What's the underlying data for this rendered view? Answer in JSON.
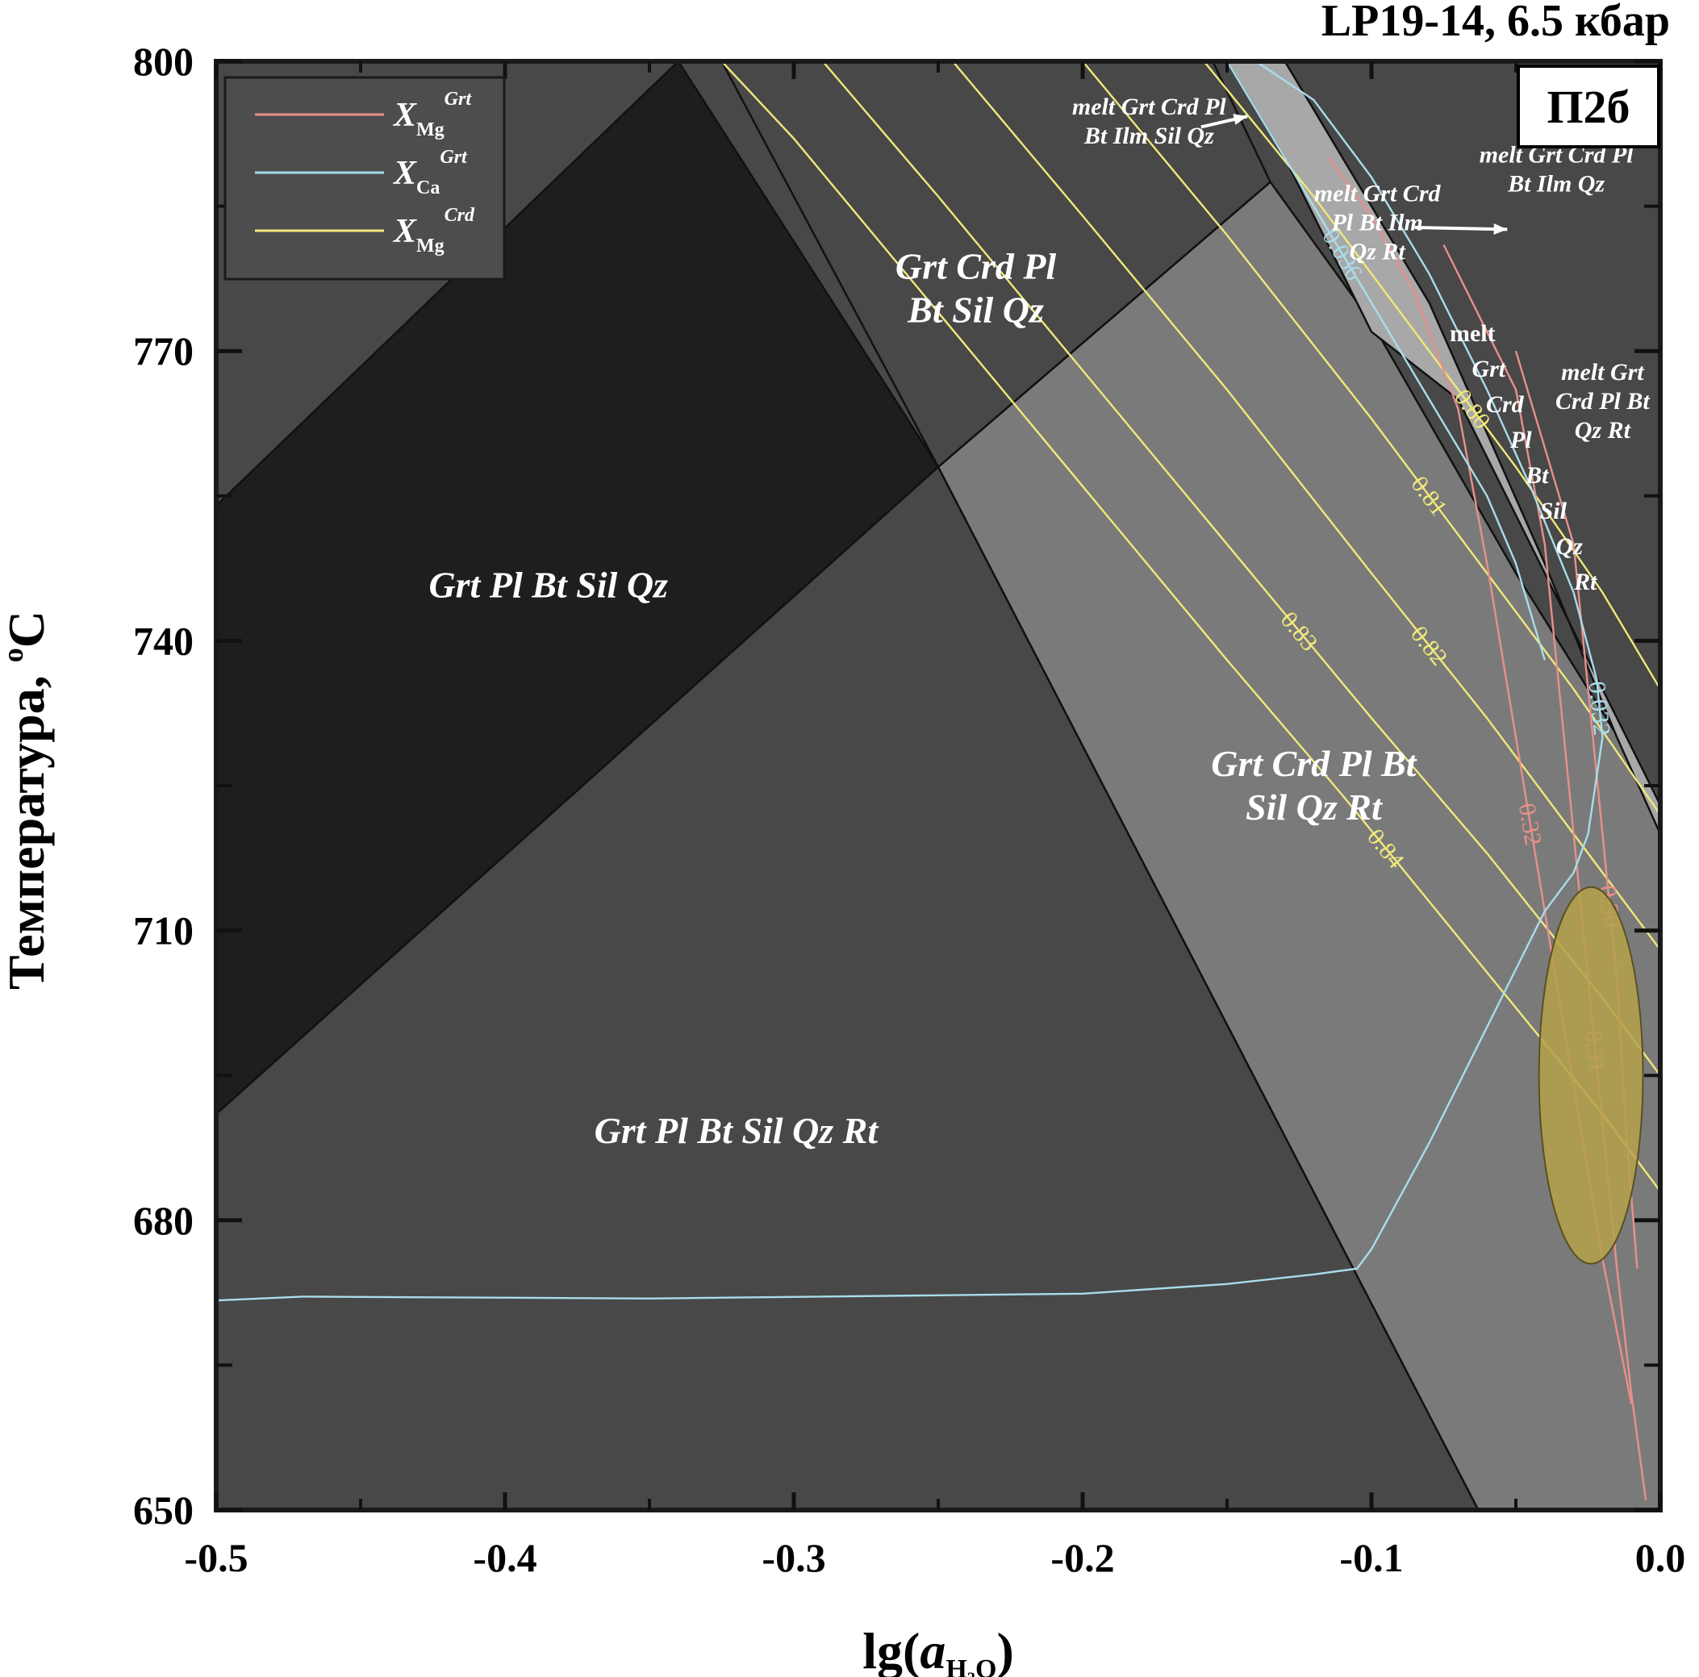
{
  "chart_data": {
    "type": "line",
    "title": "LP19-14, 6.5 кбар",
    "panel_label": "П2б",
    "xlabel": {
      "prefix": "lg(",
      "var": "a",
      "sub": "H₂O",
      "suffix": ")"
    },
    "ylabel": {
      "main": "Температура, ",
      "sup": "o",
      "unit": "C"
    },
    "xlim": [
      -0.5,
      0.0
    ],
    "ylim": [
      650,
      800
    ],
    "x_ticks": [
      "-0.5",
      "-0.4",
      "-0.3",
      "-0.2",
      "-0.1",
      "0.0"
    ],
    "x_tick_values": [
      -0.5,
      -0.4,
      -0.3,
      -0.2,
      -0.1,
      0.0
    ],
    "y_ticks": [
      "650",
      "680",
      "710",
      "740",
      "770",
      "800"
    ],
    "y_tick_values": [
      650,
      680,
      710,
      740,
      770,
      800
    ],
    "legend": {
      "position": "top-left",
      "entries": [
        {
          "base": "X",
          "sub": "Mg",
          "sup": "Grt",
          "color": "#e8908a"
        },
        {
          "base": "X",
          "sub": "Ca",
          "sup": "Grt",
          "color": "#a9dcea"
        },
        {
          "base": "X",
          "sub": "Mg",
          "sup": "Crd",
          "color": "#f0e87a"
        }
      ]
    },
    "colors": {
      "frame": "#1a1a1a",
      "field_dark": "#1e1e1e",
      "field_mid": "#484848",
      "field_light": "#7a7a7a",
      "field_pale": "#a8a8a8",
      "ellipse": "#b5a24a"
    },
    "fields": [
      {
        "label": "Grt Pl Bt Sil Qz",
        "shade": "field_dark",
        "polygon": [
          [
            -0.5,
            754
          ],
          [
            -0.34,
            800
          ],
          [
            -0.25,
            758
          ],
          [
            -0.5,
            691
          ]
        ]
      },
      {
        "label": "Grt Pl Bt Sil Qz Rt",
        "shade": "field_mid",
        "polygon": [
          [
            -0.5,
            691
          ],
          [
            -0.25,
            758
          ],
          [
            -0.063,
            650
          ],
          [
            -0.5,
            650
          ]
        ]
      },
      {
        "label": "Grt Crd Pl Bt Sil Qz",
        "shade": "field_mid",
        "polygon": [
          [
            -0.325,
            800
          ],
          [
            -0.155,
            800
          ],
          [
            -0.135,
            787.5
          ],
          [
            -0.25,
            758
          ]
        ]
      },
      {
        "label": "Grt Crd Pl Bt Sil Qz Rt",
        "shade": "field_light",
        "polygon": [
          [
            -0.25,
            758
          ],
          [
            -0.135,
            787.5
          ],
          [
            -0.1,
            773
          ],
          [
            -0.05,
            747
          ],
          [
            0.0,
            723
          ],
          [
            0.0,
            650
          ],
          [
            -0.063,
            650
          ]
        ]
      },
      {
        "label": "melt Grt Crd Pl Bt Sil Qz Rt",
        "shade": "field_pale",
        "polygon": [
          [
            -0.15,
            800
          ],
          [
            -0.13,
            790
          ],
          [
            -0.1,
            772
          ],
          [
            -0.07,
            765
          ],
          [
            0.0,
            723
          ],
          [
            0.0,
            720
          ],
          [
            -0.015,
            730
          ],
          [
            -0.04,
            748
          ],
          [
            -0.08,
            775
          ],
          [
            -0.11,
            790
          ],
          [
            -0.13,
            800
          ]
        ]
      }
    ],
    "field_texts": [
      {
        "lines": [
          "Grt Pl Bt Sil Qz"
        ],
        "x": -0.385,
        "y": 744.5,
        "size": "large"
      },
      {
        "lines": [
          "Grt Pl Bt Sil Qz Rt"
        ],
        "x": -0.32,
        "y": 688,
        "size": "large"
      },
      {
        "lines": [
          "Grt Crd Pl",
          "Bt Sil Qz"
        ],
        "x": -0.237,
        "y": 777.5,
        "size": "large"
      },
      {
        "lines": [
          "Grt Crd Pl Bt",
          "Sil Qz Rt"
        ],
        "x": -0.12,
        "y": 726,
        "size": "large"
      },
      {
        "lines": [
          "melt Grt Crd Pl",
          "Bt Ilm Sil Qz"
        ],
        "x": -0.177,
        "y": 794.5,
        "size": "small"
      },
      {
        "lines": [
          "melt Grt Crd",
          "Pl Bt Ilm",
          "Qz Rt"
        ],
        "x": -0.098,
        "y": 785.5,
        "size": "small"
      },
      {
        "lines": [
          "melt Grt Crd Pl",
          "Bt Ilm Qz"
        ],
        "x": -0.036,
        "y": 789.5,
        "size": "small"
      },
      {
        "lines": [
          "melt Grt",
          "Crd Pl Bt",
          "Qz Rt"
        ],
        "x": -0.02,
        "y": 767,
        "size": "small"
      },
      {
        "lines": [
          "melt",
          "Grt",
          "Crd",
          "Pl",
          "Bt",
          "Sil",
          "Qz",
          "Rt"
        ],
        "x": -0.065,
        "y": 771,
        "size": "stair"
      }
    ],
    "series": [
      {
        "family": "X_Mg^Crd",
        "label": "0.84",
        "x": [
          -0.325,
          -0.3,
          -0.25,
          -0.2,
          -0.15,
          -0.11,
          -0.08,
          -0.05,
          -0.02,
          0.0
        ],
        "y": [
          800,
          792,
          774,
          756,
          738,
          724,
          713,
          702,
          691,
          683
        ]
      },
      {
        "family": "X_Mg^Crd",
        "label": "0.83",
        "x": [
          -0.29,
          -0.25,
          -0.2,
          -0.15,
          -0.1,
          -0.06,
          -0.02,
          0.0
        ],
        "y": [
          800,
          786,
          768,
          750,
          732,
          718,
          703,
          695
        ]
      },
      {
        "family": "X_Mg^Crd",
        "label": "0.82",
        "x": [
          -0.245,
          -0.2,
          -0.15,
          -0.1,
          -0.06,
          -0.03,
          0.0
        ],
        "y": [
          800,
          784,
          766,
          747,
          732,
          720,
          708
        ]
      },
      {
        "family": "X_Mg^Crd",
        "label": "0.81",
        "x": [
          -0.2,
          -0.15,
          -0.1,
          -0.06,
          -0.03,
          0.0
        ],
        "y": [
          800,
          782,
          763,
          747,
          735,
          722
        ]
      },
      {
        "family": "X_Mg^Crd",
        "label": "0.80",
        "x": [
          -0.158,
          -0.12,
          -0.08,
          -0.05,
          -0.02,
          0.0
        ],
        "y": [
          800,
          786,
          770,
          758,
          745,
          735
        ]
      },
      {
        "family": "X_Mg^Grt",
        "label": "0.32",
        "x": [
          -0.115,
          -0.1,
          -0.085,
          -0.07,
          -0.06,
          -0.05,
          -0.04,
          -0.03,
          -0.02,
          -0.01
        ],
        "y": [
          790,
          784,
          776,
          764,
          748,
          730,
          712,
          694,
          676,
          661
        ]
      },
      {
        "family": "X_Mg^Grt",
        "label": "0.31",
        "x": [
          -0.075,
          -0.05,
          -0.04,
          -0.035,
          -0.03,
          -0.025,
          -0.02,
          -0.015,
          -0.01,
          -0.005
        ],
        "y": [
          781,
          766,
          750,
          735,
          720,
          705,
          690,
          675,
          662,
          651
        ]
      },
      {
        "family": "X_Mg^Grt",
        "label": "0.30",
        "x": [
          -0.05,
          -0.03,
          -0.025,
          -0.02,
          -0.015,
          -0.012,
          -0.008
        ],
        "y": [
          770,
          750,
          735,
          720,
          705,
          690,
          675
        ]
      },
      {
        "family": "X_Ca^Grt",
        "label": "0.036",
        "x": [
          -0.15,
          -0.14,
          -0.13,
          -0.12,
          -0.1,
          -0.08,
          -0.06,
          -0.05,
          -0.04
        ],
        "y": [
          800,
          795,
          790,
          785,
          775,
          765,
          755,
          748,
          738
        ]
      },
      {
        "family": "X_Ca^Grt",
        "label": "0.032",
        "x": [
          -0.5,
          -0.47,
          -0.35,
          -0.2,
          -0.15,
          -0.12,
          -0.105,
          -0.1,
          -0.08,
          -0.06,
          -0.04,
          -0.03,
          -0.025,
          -0.02,
          -0.022,
          -0.03,
          -0.045,
          -0.06,
          -0.08,
          -0.1,
          -0.12,
          -0.14
        ],
        "y": [
          671.7,
          672.1,
          671.9,
          672.4,
          673.4,
          674.4,
          675,
          677,
          688,
          700,
          712,
          716,
          720,
          730,
          736,
          745,
          756,
          766,
          778,
          788,
          796,
          800
        ]
      }
    ],
    "data_ellipse": {
      "cx": -0.024,
      "cy": 695,
      "rx": 0.018,
      "ry": 19.5
    }
  }
}
